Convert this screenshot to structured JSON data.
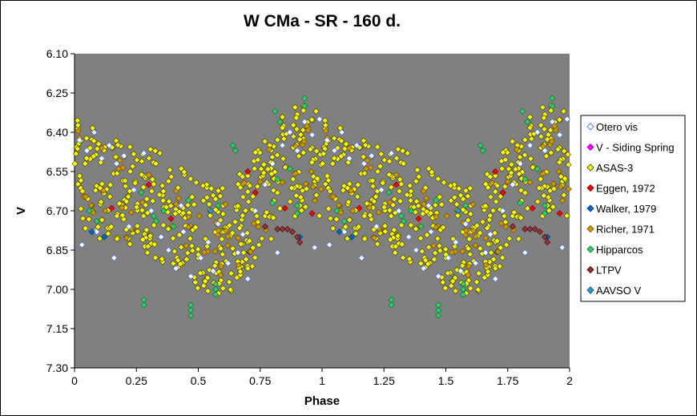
{
  "chart_data": {
    "type": "scatter",
    "title": "W CMa - SR - 160 d.",
    "xlabel": "Phase",
    "ylabel": "V",
    "xlim": [
      0,
      2
    ],
    "ylim": [
      6.1,
      7.3
    ],
    "y_reversed": true,
    "x_ticks": [
      "0",
      "0.25",
      "0.5",
      "0.75",
      "1",
      "1.25",
      "1.5",
      "1.75",
      "2"
    ],
    "y_ticks": [
      "6.10",
      "6.25",
      "6.40",
      "6.55",
      "6.70",
      "6.85",
      "7.00",
      "7.15",
      "7.30"
    ],
    "grid": false,
    "plot_background": "#808080",
    "legend_position": "right",
    "period_days": 160,
    "series": [
      {
        "name": "Otero vis",
        "color": "#ffffff",
        "stroke": "#3366ff",
        "points": [
          [
            0.02,
            6.43
          ],
          [
            0.05,
            6.47
          ],
          [
            0.08,
            6.4
          ],
          [
            0.11,
            6.5
          ],
          [
            0.14,
            6.45
          ],
          [
            0.17,
            6.52
          ],
          [
            0.2,
            6.49
          ],
          [
            0.24,
            6.62
          ],
          [
            0.28,
            6.48
          ],
          [
            0.31,
            6.7
          ],
          [
            0.35,
            6.8
          ],
          [
            0.38,
            6.85
          ],
          [
            0.41,
            6.92
          ],
          [
            0.44,
            6.78
          ],
          [
            0.47,
            6.95
          ],
          [
            0.51,
            6.88
          ],
          [
            0.54,
            6.82
          ],
          [
            0.58,
            6.75
          ],
          [
            0.62,
            6.9
          ],
          [
            0.66,
            6.86
          ],
          [
            0.7,
            6.96
          ],
          [
            0.73,
            6.7
          ],
          [
            0.77,
            6.6
          ],
          [
            0.8,
            6.52
          ],
          [
            0.84,
            6.45
          ],
          [
            0.87,
            6.4
          ],
          [
            0.9,
            6.47
          ],
          [
            0.93,
            6.36
          ],
          [
            0.96,
            6.41
          ],
          [
            0.99,
            6.35
          ],
          [
            0.03,
            6.83
          ],
          [
            0.09,
            6.78
          ],
          [
            0.16,
            6.88
          ],
          [
            0.22,
            6.76
          ],
          [
            0.43,
            6.68
          ],
          [
            0.56,
            6.93
          ],
          [
            0.68,
            6.79
          ],
          [
            0.82,
            6.86
          ],
          [
            0.91,
            6.8
          ],
          [
            0.97,
            6.84
          ],
          [
            1.02,
            6.43
          ],
          [
            1.05,
            6.47
          ],
          [
            1.08,
            6.4
          ],
          [
            1.11,
            6.5
          ],
          [
            1.14,
            6.45
          ],
          [
            1.17,
            6.52
          ],
          [
            1.2,
            6.49
          ],
          [
            1.24,
            6.62
          ],
          [
            1.28,
            6.48
          ],
          [
            1.31,
            6.7
          ],
          [
            1.35,
            6.8
          ],
          [
            1.38,
            6.85
          ],
          [
            1.41,
            6.92
          ],
          [
            1.44,
            6.78
          ],
          [
            1.47,
            6.95
          ],
          [
            1.51,
            6.88
          ],
          [
            1.54,
            6.82
          ],
          [
            1.58,
            6.75
          ],
          [
            1.62,
            6.9
          ],
          [
            1.66,
            6.86
          ],
          [
            1.7,
            6.96
          ],
          [
            1.73,
            6.7
          ],
          [
            1.77,
            6.6
          ],
          [
            1.8,
            6.52
          ],
          [
            1.84,
            6.45
          ],
          [
            1.87,
            6.4
          ],
          [
            1.9,
            6.47
          ],
          [
            1.93,
            6.36
          ],
          [
            1.96,
            6.41
          ],
          [
            1.99,
            6.35
          ],
          [
            1.03,
            6.83
          ],
          [
            1.09,
            6.78
          ],
          [
            1.16,
            6.88
          ],
          [
            1.22,
            6.76
          ],
          [
            1.43,
            6.68
          ],
          [
            1.56,
            6.93
          ],
          [
            1.68,
            6.79
          ],
          [
            1.82,
            6.86
          ],
          [
            1.91,
            6.8
          ],
          [
            1.97,
            6.84
          ]
        ]
      },
      {
        "name": "V - Siding Spring",
        "color": "#ff00ff",
        "stroke": "#990099",
        "points": []
      },
      {
        "name": "ASAS-3",
        "color": "#ffff00",
        "stroke": "#333300",
        "points": []
      },
      {
        "name": "Eggen, 1972",
        "color": "#ff0000",
        "stroke": "#660000",
        "points": [
          [
            0.15,
            6.69
          ],
          [
            0.3,
            6.6
          ],
          [
            0.39,
            6.73
          ],
          [
            0.7,
            6.55
          ],
          [
            0.73,
            6.63
          ],
          [
            0.85,
            6.69
          ],
          [
            0.96,
            6.71
          ],
          [
            1.15,
            6.69
          ],
          [
            1.3,
            6.6
          ],
          [
            1.39,
            6.73
          ],
          [
            1.7,
            6.55
          ],
          [
            1.73,
            6.63
          ],
          [
            1.85,
            6.69
          ],
          [
            1.96,
            6.71
          ]
        ]
      },
      {
        "name": "Walker, 1979",
        "color": "#0066cc",
        "stroke": "#003366",
        "points": [
          [
            0.07,
            6.78
          ],
          [
            0.12,
            6.8
          ],
          [
            0.91,
            6.8
          ],
          [
            1.07,
            6.78
          ],
          [
            1.12,
            6.8
          ],
          [
            1.91,
            6.8
          ]
        ]
      },
      {
        "name": "Richer, 1971",
        "color": "#cc9900",
        "stroke": "#664400",
        "points": []
      },
      {
        "name": "Hipparcos",
        "color": "#33cc66",
        "stroke": "#006633",
        "points": [
          [
            0.06,
            6.7
          ],
          [
            0.09,
            6.74
          ],
          [
            0.27,
            6.63
          ],
          [
            0.28,
            7.04
          ],
          [
            0.28,
            7.06
          ],
          [
            0.32,
            6.72
          ],
          [
            0.33,
            6.74
          ],
          [
            0.36,
            6.7
          ],
          [
            0.4,
            6.76
          ],
          [
            0.46,
            6.66
          ],
          [
            0.47,
            7.06
          ],
          [
            0.47,
            7.08
          ],
          [
            0.47,
            7.1
          ],
          [
            0.57,
            6.98
          ],
          [
            0.57,
            7.0
          ],
          [
            0.57,
            7.02
          ],
          [
            0.58,
            6.68
          ],
          [
            0.64,
            6.45
          ],
          [
            0.65,
            6.47
          ],
          [
            0.8,
            6.67
          ],
          [
            0.81,
            6.32
          ],
          [
            0.82,
            6.58
          ],
          [
            0.83,
            6.36
          ],
          [
            0.87,
            6.54
          ],
          [
            0.9,
            6.68
          ],
          [
            0.9,
            6.71
          ],
          [
            0.93,
            6.3
          ],
          [
            0.93,
            6.27
          ],
          [
            1.06,
            6.7
          ],
          [
            1.09,
            6.74
          ],
          [
            1.27,
            6.63
          ],
          [
            1.28,
            7.04
          ],
          [
            1.28,
            7.06
          ],
          [
            1.32,
            6.72
          ],
          [
            1.33,
            6.74
          ],
          [
            1.36,
            6.7
          ],
          [
            1.4,
            6.76
          ],
          [
            1.46,
            6.66
          ],
          [
            1.47,
            7.06
          ],
          [
            1.47,
            7.08
          ],
          [
            1.47,
            7.1
          ],
          [
            1.57,
            6.98
          ],
          [
            1.57,
            7.0
          ],
          [
            1.57,
            7.02
          ],
          [
            1.58,
            6.68
          ],
          [
            1.64,
            6.45
          ],
          [
            1.65,
            6.47
          ],
          [
            1.8,
            6.67
          ],
          [
            1.81,
            6.32
          ],
          [
            1.82,
            6.58
          ],
          [
            1.83,
            6.36
          ],
          [
            1.87,
            6.54
          ],
          [
            1.9,
            6.68
          ],
          [
            1.9,
            6.71
          ],
          [
            1.93,
            6.3
          ],
          [
            1.93,
            6.27
          ]
        ]
      },
      {
        "name": "LTPV",
        "color": "#993333",
        "stroke": "#330000",
        "points": [
          [
            0.77,
            6.76
          ],
          [
            0.82,
            6.77
          ],
          [
            0.84,
            6.77
          ],
          [
            0.86,
            6.77
          ],
          [
            0.88,
            6.78
          ],
          [
            0.9,
            6.8
          ],
          [
            0.91,
            6.82
          ],
          [
            1.77,
            6.76
          ],
          [
            1.82,
            6.77
          ],
          [
            1.84,
            6.77
          ],
          [
            1.86,
            6.77
          ],
          [
            1.88,
            6.78
          ],
          [
            1.9,
            6.8
          ],
          [
            1.91,
            6.82
          ]
        ]
      },
      {
        "name": "AAVSO V",
        "color": "#3399cc",
        "stroke": "#004466",
        "points": [
          [
            0.55,
            6.7
          ],
          [
            1.55,
            6.7
          ]
        ]
      }
    ]
  }
}
